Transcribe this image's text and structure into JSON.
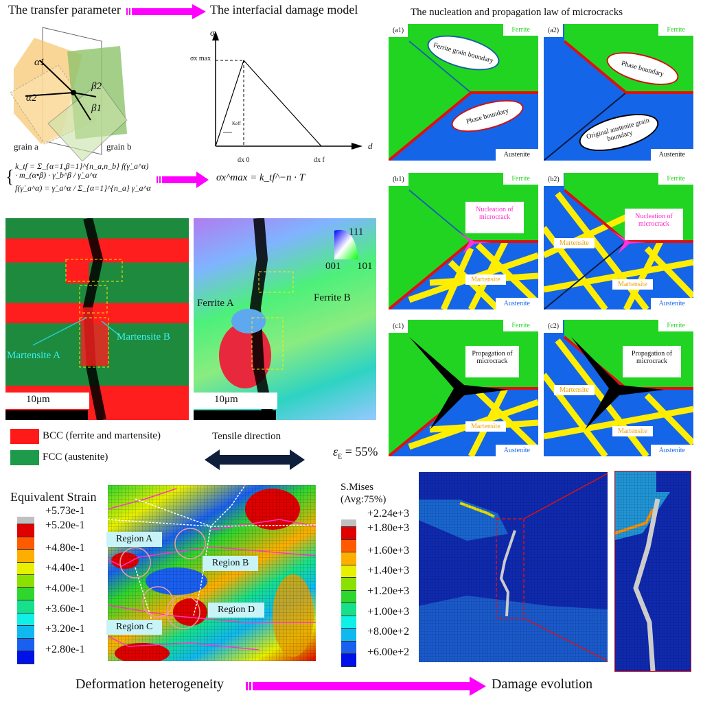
{
  "top_left": {
    "title_left": "The transfer parameter",
    "title_right": "The interfacial damage model",
    "crystal": {
      "alpha1": "α1",
      "alpha2": "α2",
      "beta1": "β1",
      "beta2": "β2",
      "grain_a": "grain a",
      "grain_b": "grain b"
    },
    "stress_chart": {
      "y_axis": "σ",
      "x_axis": "d",
      "peak": "σx max",
      "d0": "dx 0",
      "df": "dx f",
      "stiffness": "Keff"
    },
    "formula_1": "k_tf = Σ_{α=1,β=1}^{n_a,n_b} f(γ̇_a^α) · m_(α•β) · γ̇_b^β / γ̇_a^α",
    "formula_2": "f(γ̇_a^α) = γ̇_a^α / Σ_{α=1}^{n_a} γ̇_a^α",
    "formula_result": "σx^max = k_tf^−n · T"
  },
  "ebsd": {
    "phase_map": {
      "martensite_a": "Martensite A",
      "martensite_b": "Martensite B",
      "scale": "10μm"
    },
    "ipf_map": {
      "ferrite_a": "Ferrite A",
      "ferrite_b": "Ferrite B",
      "scale": "10μm",
      "ipf_111": "111",
      "ipf_001": "001",
      "ipf_101": "101"
    },
    "legend": [
      {
        "label": "BCC (ferrite and martensite)",
        "color": "#ff1a1a"
      },
      {
        "label": "FCC (austenite)",
        "color": "#1d9a4a"
      }
    ],
    "tensile_direction": "Tensile direction",
    "strain": "ε",
    "strain_sub": "E",
    "strain_value": "= 55%"
  },
  "right_top": {
    "title": "The nucleation and propagation law of microcracks",
    "ferrite": "Ferrite",
    "austenite": "Austenite",
    "martensite": "Martensite",
    "panels": {
      "a1": {
        "label": "(a1)",
        "callout_1": "Ferrite grain boundary",
        "callout_2": "Phase boundary"
      },
      "a2": {
        "label": "(a2)",
        "callout_1": "Phase boundary",
        "callout_2": "Original austenite grain boundary"
      },
      "b1": {
        "label": "(b1)",
        "callout": "Nucleation of microcrack"
      },
      "b2": {
        "label": "(b2)",
        "callout": "Nucleation of microcrack"
      },
      "c1": {
        "label": "(c1)",
        "callout": "Propagation of microcrack"
      },
      "c2": {
        "label": "(c2)",
        "callout": "Propagation of microcrack"
      }
    },
    "colors": {
      "ferrite": "#22d422",
      "austenite": "#1565e8",
      "martensite": "#ffee00",
      "phase_boundary": "#e01010",
      "nucleation": "#ff33dd",
      "crack": "#000000"
    }
  },
  "strain_field": {
    "title": "Equivalent Strain",
    "ticks": [
      "+5.73e-1",
      "+5.20e-1",
      "+4.80e-1",
      "+4.40e-1",
      "+4.00e-1",
      "+3.60e-1",
      "+3.20e-1",
      "+2.80e-1"
    ],
    "colors": [
      "#c0c0c0",
      "#e00000",
      "#ff5a00",
      "#ffae00",
      "#e8f000",
      "#8ae000",
      "#2ed62e",
      "#16e08a",
      "#10f0e6",
      "#10b8f0",
      "#1a60f0",
      "#0010e8"
    ],
    "regions": [
      "Region A",
      "Region B",
      "Region C",
      "Region D"
    ]
  },
  "stress_field": {
    "title": "S.Mises",
    "subtitle": "(Avg:75%)",
    "ticks": [
      "+2.24e+3",
      "+1.80e+3",
      "+1.60e+3",
      "+1.40e+3",
      "+1.20e+3",
      "+1.00e+3",
      "+8.00e+2",
      "+6.00e+2"
    ]
  },
  "bottom": {
    "left": "Deformation heterogeneity",
    "right": "Damage evolution",
    "arrow_color": "#ff00ff"
  }
}
